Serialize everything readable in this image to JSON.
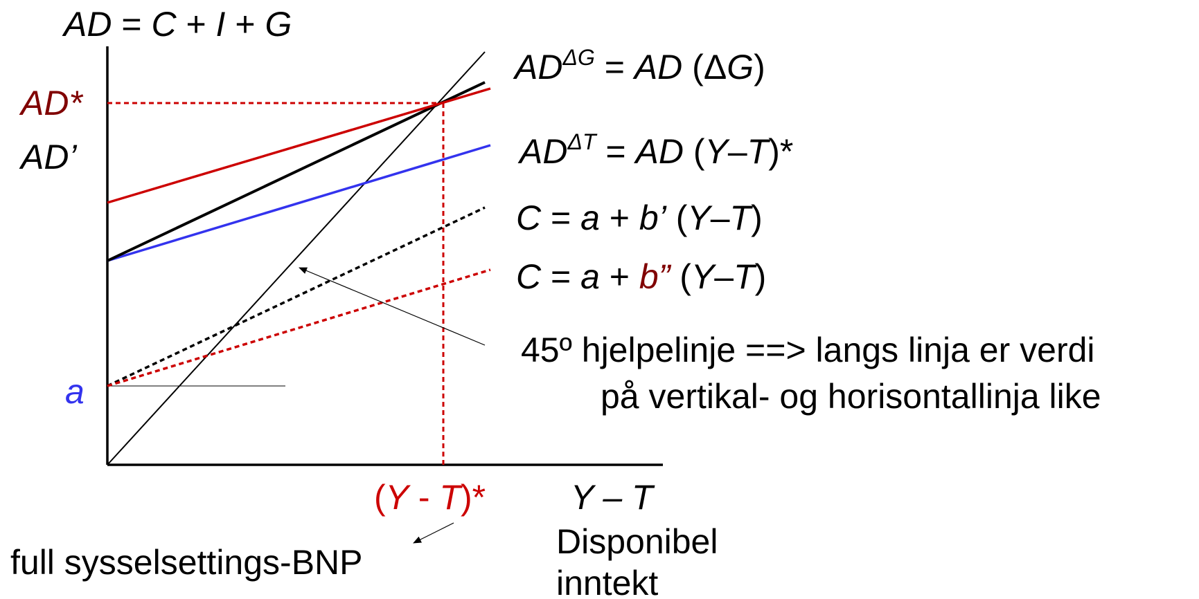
{
  "axes": {
    "y_label": {
      "t1": "AD",
      "t2": " = ",
      "t3": "C",
      "t4": " + ",
      "t5": "I",
      "t6": " + ",
      "t7": "G"
    },
    "x_label": "Y – T",
    "x_sublabel_line1": "Disponibel",
    "x_sublabel_line2": "inntekt"
  },
  "y_ticks": {
    "ad_star": "AD*",
    "ad_prime": "AD’",
    "a": "a"
  },
  "x_tick": {
    "open": "(",
    "Y": "Y",
    "dash": " - ",
    "T": "T",
    "close": ")*"
  },
  "curve_labels": {
    "ad_delta_g": {
      "ad": "AD",
      "sup": "ΔG",
      "eq": " = ",
      "ad2": "AD",
      "open": " (Δ",
      "g": "G",
      "close": ")"
    },
    "ad_delta_t": {
      "ad": "AD",
      "sup": "ΔT",
      "eq": " = ",
      "ad2": "AD",
      "open": " (",
      "y": "Y",
      "minus": "–",
      "t": "T",
      "close": ")*"
    },
    "c_bprime": {
      "c": "C",
      "eq": " = ",
      "a": "a",
      "plus": " + ",
      "b": "b’",
      "open": " (",
      "y": "Y",
      "minus": "–",
      "t": "T",
      "close": ")"
    },
    "c_bdouble": {
      "c": "C",
      "eq": " = ",
      "a": "a",
      "plus": " + ",
      "b": "b”",
      "open": " (",
      "y": "Y",
      "minus": "–",
      "t": "T",
      "close": ")"
    }
  },
  "annotations": {
    "helper_line1": "45º hjelpelinje ==> langs linja er verdi",
    "helper_line2": "på vertikal- og horisontallinja like",
    "full_employment": "full sysselsettings-BNP"
  },
  "colors": {
    "red": "#cc0000",
    "dark_red": "#800000",
    "blue": "#3333ee",
    "black": "#000000"
  }
}
